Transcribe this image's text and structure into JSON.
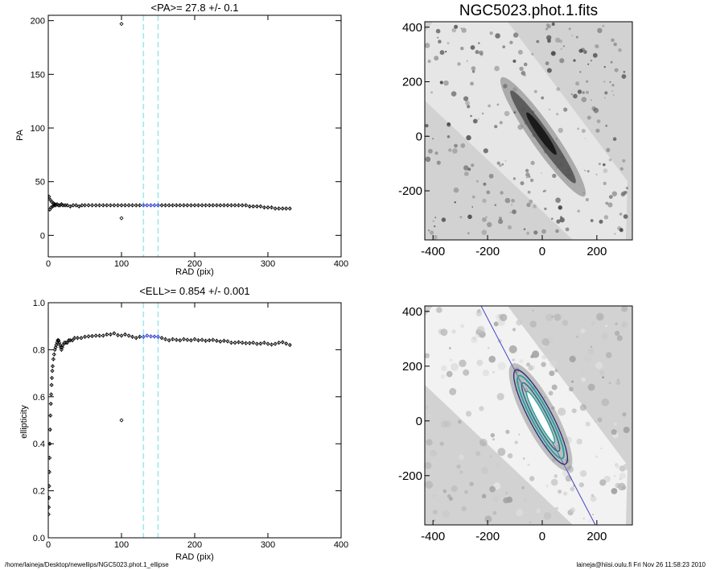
{
  "chart_data": [
    {
      "id": "pa",
      "type": "scatter",
      "title": "<PA>=  27.8 +/-   0.1",
      "xlabel": "RAD (pix)",
      "ylabel": "PA",
      "xlim": [
        0,
        400
      ],
      "ylim": [
        -20,
        205
      ],
      "xticks": [
        "0",
        "100",
        "200",
        "300",
        "400"
      ],
      "xtick_values": [
        0,
        100,
        200,
        300,
        400
      ],
      "yticks": [
        "0",
        "50",
        "100",
        "150",
        "200"
      ],
      "ytick_values": [
        0,
        50,
        100,
        150,
        200
      ],
      "vlines": [
        130,
        150
      ],
      "highlight_range": [
        130,
        150
      ],
      "outliers": [
        [
          100,
          197
        ],
        [
          100,
          16
        ]
      ],
      "series": [
        {
          "x": [
            1,
            2,
            3,
            4,
            5,
            6,
            7,
            8,
            9,
            10,
            12,
            14,
            16,
            18,
            20,
            23,
            26,
            30,
            34,
            38,
            42,
            46,
            50,
            55,
            60,
            65,
            70,
            75,
            80,
            85,
            90,
            95,
            100,
            105,
            110,
            115,
            120,
            125,
            130,
            135,
            140,
            145,
            150,
            155,
            160,
            165,
            170,
            175,
            180,
            185,
            190,
            195,
            200,
            205,
            210,
            215,
            220,
            225,
            230,
            235,
            240,
            245,
            250,
            255,
            260,
            265,
            270,
            275,
            280,
            285,
            290,
            295,
            300,
            305,
            310,
            315,
            320,
            325,
            330
          ],
          "y": [
            36,
            24,
            33,
            26,
            31,
            27,
            30,
            28,
            29,
            28,
            29,
            28,
            28,
            29,
            28,
            28,
            28,
            27,
            28,
            28,
            27,
            28,
            28,
            28,
            28,
            28,
            28,
            28,
            28,
            28,
            28,
            28,
            28,
            28,
            28,
            28,
            28,
            28,
            28,
            28,
            28,
            28,
            28,
            28,
            28,
            28,
            28,
            28,
            28,
            28,
            28,
            28,
            28,
            28,
            28,
            28,
            28,
            28,
            28,
            28,
            28,
            28,
            28,
            28,
            28,
            28,
            28,
            27,
            27,
            27,
            27,
            26,
            26,
            26,
            25,
            25,
            25,
            25,
            25
          ]
        }
      ]
    },
    {
      "id": "ell",
      "type": "scatter",
      "title": "<ELL>= 0.854 +/-  0.001",
      "xlabel": "RAD (pix)",
      "ylabel": "ellipticity",
      "xlim": [
        0,
        400
      ],
      "ylim": [
        0,
        1
      ],
      "xticks": [
        "0",
        "100",
        "200",
        "300",
        "400"
      ],
      "xtick_values": [
        0,
        100,
        200,
        300,
        400
      ],
      "yticks": [
        "0.0",
        "0.2",
        "0.4",
        "0.6",
        "0.8",
        "1.0"
      ],
      "ytick_values": [
        0,
        0.2,
        0.4,
        0.6,
        0.8,
        1.0
      ],
      "vlines": [
        130,
        150
      ],
      "highlight_range": [
        130,
        150
      ],
      "outliers": [
        [
          100,
          0.5
        ]
      ],
      "series": [
        {
          "x": [
            0.3,
            0.6,
            0.9,
            1.2,
            1.5,
            1.8,
            2.1,
            2.5,
            3,
            3.5,
            4,
            4.5,
            5,
            5.5,
            6,
            7,
            8,
            9,
            10,
            11,
            12,
            13,
            14,
            15,
            16,
            17,
            18,
            19,
            20,
            22,
            24,
            26,
            28,
            30,
            33,
            36,
            40,
            45,
            50,
            55,
            60,
            65,
            70,
            75,
            80,
            85,
            90,
            95,
            100,
            105,
            110,
            115,
            120,
            125,
            130,
            135,
            140,
            145,
            150,
            155,
            160,
            165,
            170,
            175,
            180,
            185,
            190,
            195,
            200,
            205,
            210,
            215,
            220,
            225,
            230,
            235,
            240,
            245,
            250,
            255,
            260,
            265,
            270,
            275,
            280,
            285,
            290,
            295,
            300,
            305,
            310,
            315,
            320,
            325,
            330
          ],
          "y": [
            0.1,
            0.13,
            0.17,
            0.22,
            0.28,
            0.34,
            0.4,
            0.46,
            0.52,
            0.57,
            0.61,
            0.65,
            0.68,
            0.71,
            0.73,
            0.76,
            0.78,
            0.8,
            0.81,
            0.82,
            0.83,
            0.84,
            0.84,
            0.83,
            0.82,
            0.81,
            0.8,
            0.81,
            0.82,
            0.83,
            0.83,
            0.83,
            0.84,
            0.84,
            0.84,
            0.85,
            0.85,
            0.85,
            0.855,
            0.857,
            0.858,
            0.86,
            0.86,
            0.86,
            0.865,
            0.865,
            0.87,
            0.862,
            0.86,
            0.865,
            0.86,
            0.855,
            0.85,
            0.855,
            0.855,
            0.86,
            0.857,
            0.856,
            0.855,
            0.85,
            0.845,
            0.84,
            0.845,
            0.842,
            0.84,
            0.845,
            0.842,
            0.84,
            0.845,
            0.84,
            0.842,
            0.838,
            0.84,
            0.842,
            0.838,
            0.835,
            0.838,
            0.836,
            0.83,
            0.83,
            0.832,
            0.83,
            0.828,
            0.828,
            0.83,
            0.825,
            0.826,
            0.83,
            0.825,
            0.822,
            0.825,
            0.83,
            0.832,
            0.826,
            0.82
          ]
        }
      ]
    }
  ],
  "images": {
    "top": {
      "title": "NGC5023.phot.1.fits",
      "xlim": [
        -430,
        330
      ],
      "ylim": [
        -380,
        420
      ],
      "xticks": [
        "-400",
        "-200",
        "0",
        "200"
      ],
      "xtick_values": [
        -400,
        -200,
        0,
        200
      ],
      "yticks": [
        "-200",
        "0",
        "200",
        "400"
      ],
      "ytick_values": [
        -200,
        0,
        200,
        400
      ]
    },
    "bottom": {
      "title": "",
      "xlim": [
        -430,
        330
      ],
      "ylim": [
        -380,
        420
      ],
      "xticks": [
        "-400",
        "-200",
        "0",
        "200"
      ],
      "xtick_values": [
        -400,
        -200,
        0,
        200
      ],
      "yticks": [
        "-200",
        "0",
        "200",
        "400"
      ],
      "ytick_values": [
        -200,
        0,
        200,
        400
      ]
    }
  },
  "colors": {
    "highlight": "#2233cc",
    "vline": "#9fe8ee",
    "contour": "#2aa39a",
    "major_axis": "#4444cc"
  },
  "footer": {
    "left": "/home/laineja/Desktop/newellips/NGC5023.phot.1_ellipse",
    "right": "laineja@hiisi.oulu.fi  Fri Nov 26 11:58:23 2010"
  }
}
